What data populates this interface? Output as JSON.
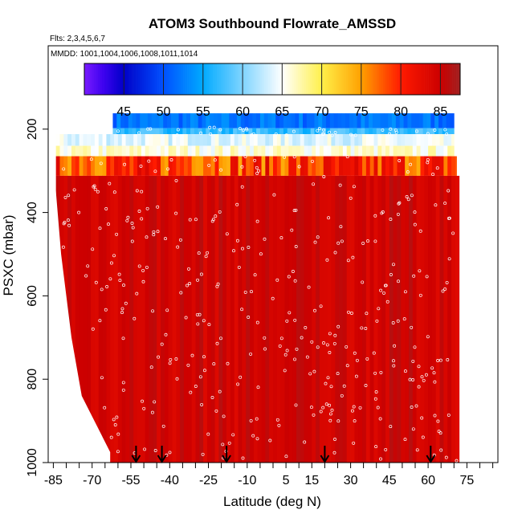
{
  "chart_data": {
    "type": "heatmap",
    "title": "ATOM3 Southbound Flowrate_AMSSD",
    "flights_note": "Flts: 2,3,4,5,6,7",
    "dates_note": "MMDD: 1001,1004,1006,1008,1011,1014",
    "xlabel": "Latitude (deg N)",
    "ylabel": "PSXC (mbar)",
    "xlim": [
      -87,
      87
    ],
    "ylim": [
      1000,
      0
    ],
    "x_ticks": [
      -85,
      -70,
      -55,
      -40,
      -25,
      -10,
      5,
      15,
      30,
      45,
      60,
      75
    ],
    "x_tick_labels": [
      "-85",
      "-70",
      "-55",
      "-40",
      "-25",
      "-10",
      "5",
      "15",
      "30",
      "45",
      "60",
      "75"
    ],
    "y_ticks": [
      200,
      400,
      600,
      800,
      1000
    ],
    "y_tick_labels": [
      "200",
      "400",
      "600",
      "800",
      "1000"
    ],
    "colorbar": {
      "range": [
        40,
        87.5
      ],
      "ticks": [
        45,
        50,
        55,
        60,
        65,
        70,
        75,
        80,
        85
      ],
      "tick_labels": [
        "45",
        "50",
        "55",
        "60",
        "65",
        "70",
        "75",
        "80",
        "85"
      ],
      "stops": [
        {
          "value": 40,
          "color": "#7a1cff"
        },
        {
          "value": 42.5,
          "color": "#3a00ee"
        },
        {
          "value": 45,
          "color": "#0000c8"
        },
        {
          "value": 50,
          "color": "#0050ff"
        },
        {
          "value": 55,
          "color": "#00aaff"
        },
        {
          "value": 60,
          "color": "#7fd4ff"
        },
        {
          "value": 65,
          "color": "#ffffff"
        },
        {
          "value": 70,
          "color": "#fff04a"
        },
        {
          "value": 75,
          "color": "#ffa000"
        },
        {
          "value": 80,
          "color": "#ff1a00"
        },
        {
          "value": 85,
          "color": "#cc0000"
        },
        {
          "value": 87.5,
          "color": "#a02020"
        }
      ]
    },
    "profile_arrow_latitudes": [
      -53,
      -43,
      -18,
      20,
      61
    ],
    "heatmap_bands": [
      {
        "p_top": 162,
        "p_bottom": 198,
        "lat_min": -62,
        "lat_max": 70,
        "value": 52
      },
      {
        "p_top": 198,
        "p_bottom": 212,
        "lat_min": -62,
        "lat_max": 70,
        "value": 57
      },
      {
        "p_top": 212,
        "p_bottom": 240,
        "lat_min": -84,
        "lat_max": 70,
        "value": 64
      },
      {
        "p_top": 240,
        "p_bottom": 265,
        "lat_min": -84,
        "lat_max": 70,
        "value": 66
      },
      {
        "p_top": 265,
        "p_bottom": 312,
        "lat_min": -84,
        "lat_max": 71,
        "value": 79
      },
      {
        "p_top": 312,
        "p_bottom": 1000,
        "lat_min": -84,
        "lat_max": 72,
        "value": 85
      }
    ]
  }
}
